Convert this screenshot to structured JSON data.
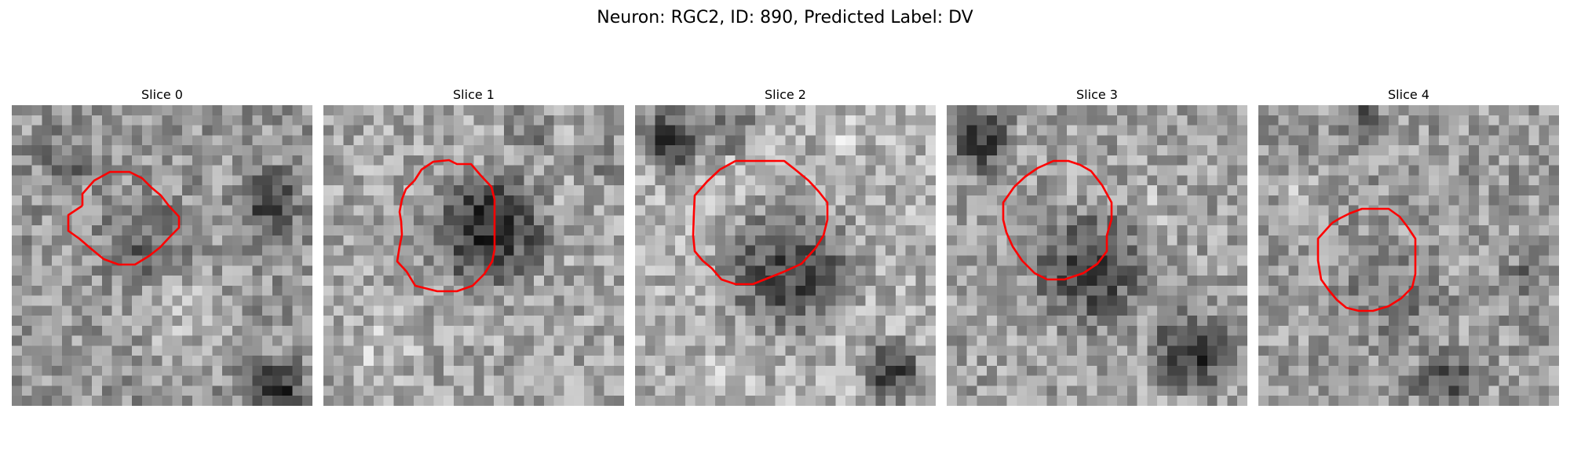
{
  "figure": {
    "title": "Neuron: RGC2, ID: 890, Predicted Label: DV"
  },
  "contour_color": "#ff0000",
  "panels": [
    {
      "title": "Slice 0"
    },
    {
      "title": "Slice 1"
    },
    {
      "title": "Slice 2"
    },
    {
      "title": "Slice 3"
    },
    {
      "title": "Slice 4"
    }
  ]
}
